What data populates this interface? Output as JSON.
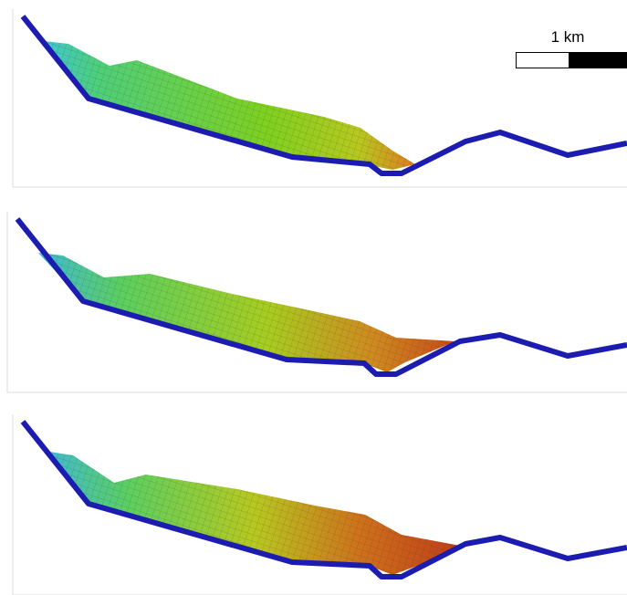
{
  "scale_bar": {
    "label": "1 km"
  }
}
